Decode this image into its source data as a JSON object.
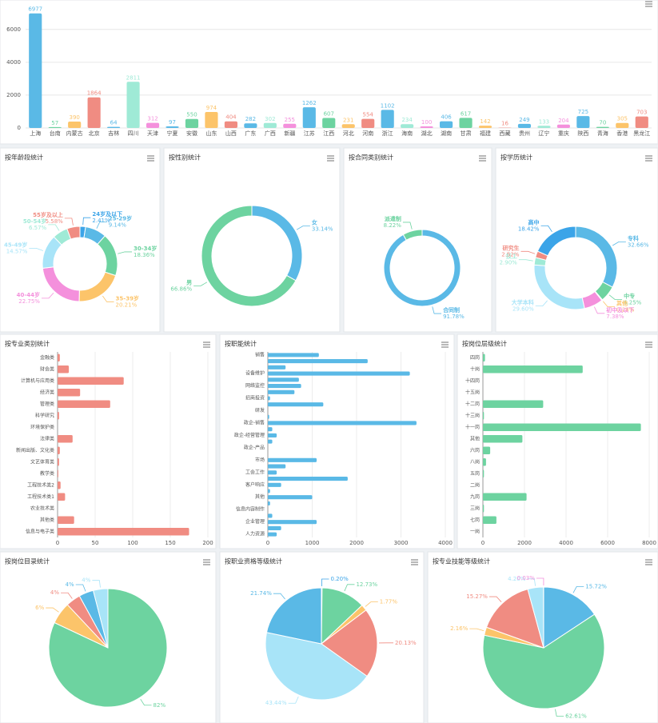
{
  "chart_data": [
    {
      "type": "bar",
      "categories": [
        "上海",
        "台南",
        "内蒙古",
        "北京",
        "吉林",
        "四川",
        "天津",
        "宁夏",
        "安徽",
        "山东",
        "山西",
        "广东",
        "广西",
        "新疆",
        "江苏",
        "江西",
        "河北",
        "河南",
        "浙江",
        "海南",
        "湖北",
        "湖南",
        "甘肃",
        "福建",
        "西藏",
        "贵州",
        "辽宁",
        "重庆",
        "陕西",
        "青海",
        "香港",
        "黑龙江"
      ],
      "values": [
        6977,
        57,
        390,
        1864,
        64,
        2811,
        312,
        97,
        550,
        974,
        404,
        282,
        302,
        255,
        1262,
        607,
        231,
        554,
        1102,
        234,
        100,
        406,
        617,
        142,
        16,
        249,
        133,
        204,
        725,
        70,
        305,
        703
      ],
      "colors": [
        "#5ab9e6",
        "#6dd3a0",
        "#fcc46a",
        "#f08c82",
        "#5ab9e6",
        "#9fead6",
        "#f490dc",
        "#5ab9e6",
        "#6dd3a0",
        "#fcc46a",
        "#f08c82",
        "#5ab9e6",
        "#9fead6",
        "#f490dc",
        "#5ab9e6",
        "#6dd3a0",
        "#fcc46a",
        "#f08c82",
        "#5ab9e6",
        "#9fead6",
        "#f490dc",
        "#5ab9e6",
        "#6dd3a0",
        "#fcc46a",
        "#f08c82",
        "#5ab9e6",
        "#9fead6",
        "#f490dc",
        "#5ab9e6",
        "#6dd3a0",
        "#fcc46a",
        "#f08c82"
      ],
      "ylim": [
        0,
        7500
      ],
      "yticks": [
        0,
        2000,
        4000,
        6000
      ],
      "grid": true
    },
    {
      "type": "donut",
      "title": "按年龄段统计",
      "categories": [
        "24岁及以下",
        "25-29岁",
        "30-34岁",
        "35-39岁",
        "40-44岁",
        "45-49岁",
        "50-54岁",
        "55岁及以上"
      ],
      "values": [
        2.41,
        9.14,
        18.36,
        20.21,
        22.75,
        14.57,
        6.57,
        5.58
      ],
      "value_labels": [
        "2.41%",
        "9.14%",
        "18.36%",
        "20.21%",
        "22.75%",
        "14.57%",
        "6.57%",
        "5.58%"
      ],
      "colors": [
        "#3ba4e8",
        "#5ab9e6",
        "#6dd3a0",
        "#fcc46a",
        "#f490dc",
        "#a8e4f8",
        "#9fead6",
        "#f08c82"
      ]
    },
    {
      "type": "donut",
      "title": "按性别统计",
      "categories": [
        "女",
        "男"
      ],
      "values": [
        33.14,
        66.86
      ],
      "value_labels": [
        "33.14%",
        "66.86%"
      ],
      "colors": [
        "#5ab9e6",
        "#6dd3a0"
      ]
    },
    {
      "type": "donut",
      "title": "按合同类别统计",
      "categories": [
        "合同制",
        "派遣制"
      ],
      "values": [
        91.78,
        8.22
      ],
      "value_labels": [
        "91.78%",
        "8.22%"
      ],
      "colors": [
        "#5ab9e6",
        "#6dd3a0"
      ]
    },
    {
      "type": "donut",
      "title": "按学历统计",
      "categories": [
        "专科",
        "中专",
        "其他",
        "初中及以下",
        "大学本科",
        "技工",
        "研究生",
        "高中"
      ],
      "values": [
        32.66,
        6.25,
        0.28,
        7.38,
        29.6,
        2.9,
        2.52,
        18.42
      ],
      "value_labels": [
        "32.66%",
        "6.25%",
        "0.28%",
        "7.38%",
        "29.60%",
        "2.90%",
        "2.52%",
        "18.42%"
      ],
      "colors": [
        "#5ab9e6",
        "#6dd3a0",
        "#fcc46a",
        "#f490dc",
        "#a8e4f8",
        "#9fead6",
        "#f08c82",
        "#3ba4e8"
      ]
    },
    {
      "type": "hbar",
      "title": "按专业类别统计",
      "categories": [
        "金融类",
        "财会类",
        "计算机与应用类",
        "经济类",
        "管理类",
        "科学研究",
        "环境保护类",
        "法律类",
        "新闻出版、文化类",
        "文艺体育类",
        "教学类",
        "工程技术类2",
        "工程技术类1",
        "农业技术类",
        "其他类",
        "信息与电子类"
      ],
      "values": [
        3,
        15,
        88,
        30,
        70,
        2,
        0,
        20,
        3,
        2,
        1,
        4,
        10,
        0,
        22,
        175
      ],
      "color": "#f08c82",
      "xlim": [
        0,
        200
      ],
      "xticks": [
        0,
        50,
        100,
        150,
        200
      ],
      "grid": true
    },
    {
      "type": "hbar",
      "title": "按职能统计",
      "categories": [
        "销售",
        null,
        null,
        "设备维护",
        null,
        "网络监控",
        null,
        "招商投资",
        null,
        "研发",
        null,
        "政企-销售",
        null,
        "政企-经营管理",
        null,
        "政企-产品",
        null,
        "市场",
        null,
        "工会工作",
        null,
        "客户响应",
        null,
        "其他",
        null,
        "信息内容制作",
        null,
        "企业管理",
        null,
        "人力资源"
      ],
      "values": [
        1150,
        2250,
        400,
        3200,
        700,
        750,
        600,
        50,
        1250,
        0,
        30,
        3350,
        100,
        200,
        100,
        0,
        0,
        1100,
        400,
        200,
        1800,
        300,
        50,
        1000,
        50,
        0,
        100,
        1100,
        300,
        200
      ],
      "color": "#5ab9e6",
      "xlim": [
        0,
        4000
      ],
      "xticks": [
        0,
        1000,
        2000,
        3000,
        4000
      ],
      "grid": true
    },
    {
      "type": "hbar",
      "title": "按岗位层级统计",
      "categories": [
        "四岗",
        "十岗",
        "十四岗",
        "十五岗",
        "十二岗",
        "十三岗",
        "十一岗",
        "其他",
        "六岗",
        "八岗",
        "五岗",
        "二岗",
        "九岗",
        "三岗",
        "七岗",
        "一岗"
      ],
      "values": [
        100,
        4800,
        0,
        0,
        2900,
        50,
        7600,
        1900,
        350,
        150,
        50,
        0,
        2100,
        50,
        650,
        0
      ],
      "color": "#6dd3a0",
      "xlim": [
        0,
        8000
      ],
      "xticks": [
        0,
        2000,
        4000,
        6000,
        8000
      ],
      "grid": true
    },
    {
      "type": "pie",
      "title": "按岗位目录统计",
      "values": [
        82,
        6,
        4,
        4,
        4
      ],
      "value_labels": [
        "82%",
        "6%",
        "4%",
        "4%",
        "4%"
      ],
      "colors": [
        "#6dd3a0",
        "#fcc46a",
        "#f08c82",
        "#5ab9e6",
        "#a8e4f8"
      ]
    },
    {
      "type": "pie",
      "title": "按职业资格等级统计",
      "values": [
        0.2,
        12.73,
        1.77,
        20.13,
        43.44,
        21.74
      ],
      "value_labels": [
        "0.20%",
        "12.73%",
        "1.77%",
        "20.13%",
        "43.44%",
        "21.74%"
      ],
      "colors": [
        "#3ba4e8",
        "#6dd3a0",
        "#fcc46a",
        "#f08c82",
        "#a8e4f8",
        "#5ab9e6"
      ]
    },
    {
      "type": "pie",
      "title": "按专业技能等级统计",
      "values": [
        15.72,
        62.61,
        2.16,
        15.27,
        4.2,
        0.03
      ],
      "value_labels": [
        "15.72%",
        "62.61%",
        "2.16%",
        "15.27%",
        "4.20%",
        "0.03%"
      ],
      "colors": [
        "#5ab9e6",
        "#6dd3a0",
        "#fcc46a",
        "#f08c82",
        "#a8e4f8",
        "#f490dc"
      ]
    }
  ]
}
